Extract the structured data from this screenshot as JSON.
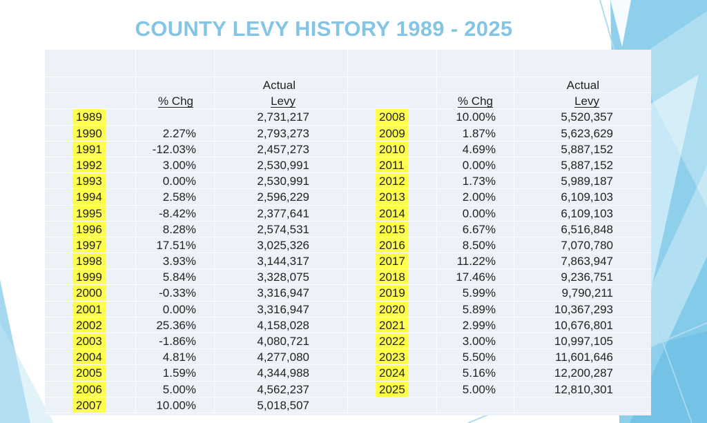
{
  "slide": {
    "title": "COUNTY LEVY HISTORY 1989 - 2025"
  },
  "table": {
    "headers": {
      "actual": "Actual",
      "pct_chg": "% Chg",
      "levy": "Levy"
    },
    "left_rows": [
      {
        "year": "1989",
        "pct": "",
        "levy": "2,731,217"
      },
      {
        "year": "1990",
        "pct": "2.27%",
        "levy": "2,793,273"
      },
      {
        "year": "1991",
        "pct": "-12.03%",
        "levy": "2,457,273"
      },
      {
        "year": "1992",
        "pct": "3.00%",
        "levy": "2,530,991"
      },
      {
        "year": "1993",
        "pct": "0.00%",
        "levy": "2,530,991"
      },
      {
        "year": "1994",
        "pct": "2.58%",
        "levy": "2,596,229"
      },
      {
        "year": "1995",
        "pct": "-8.42%",
        "levy": "2,377,641"
      },
      {
        "year": "1996",
        "pct": "8.28%",
        "levy": "2,574,531"
      },
      {
        "year": "1997",
        "pct": "17.51%",
        "levy": "3,025,326"
      },
      {
        "year": "1998",
        "pct": "3.93%",
        "levy": "3,144,317"
      },
      {
        "year": "1999",
        "pct": "5.84%",
        "levy": "3,328,075"
      },
      {
        "year": "2000",
        "pct": "-0.33%",
        "levy": "3,316,947"
      },
      {
        "year": "2001",
        "pct": "0.00%",
        "levy": "3,316,947"
      },
      {
        "year": "2002",
        "pct": "25.36%",
        "levy": "4,158,028"
      },
      {
        "year": "2003",
        "pct": "-1.86%",
        "levy": "4,080,721"
      },
      {
        "year": "2004",
        "pct": "4.81%",
        "levy": "4,277,080"
      },
      {
        "year": "2005",
        "pct": "1.59%",
        "levy": "4,344,988"
      },
      {
        "year": "2006",
        "pct": "5.00%",
        "levy": "4,562,237"
      },
      {
        "year": "2007",
        "pct": "10.00%",
        "levy": "5,018,507"
      }
    ],
    "right_rows": [
      {
        "year": "2008",
        "pct": "10.00%",
        "levy": "5,520,357"
      },
      {
        "year": "2009",
        "pct": "1.87%",
        "levy": "5,623,629"
      },
      {
        "year": "2010",
        "pct": "4.69%",
        "levy": "5,887,152"
      },
      {
        "year": "2011",
        "pct": "0.00%",
        "levy": "5,887,152"
      },
      {
        "year": "2012",
        "pct": "1.73%",
        "levy": "5,989,187"
      },
      {
        "year": "2013",
        "pct": "2.00%",
        "levy": "6,109,103"
      },
      {
        "year": "2014",
        "pct": "0.00%",
        "levy": "6,109,103"
      },
      {
        "year": "2015",
        "pct": "6.67%",
        "levy": "6,516,848"
      },
      {
        "year": "2016",
        "pct": "8.50%",
        "levy": "7,070,780"
      },
      {
        "year": "2017",
        "pct": "11.22%",
        "levy": "7,863,947"
      },
      {
        "year": "2018",
        "pct": "17.46%",
        "levy": "9,236,751"
      },
      {
        "year": "2019",
        "pct": "5.99%",
        "levy": "9,790,211"
      },
      {
        "year": "2020",
        "pct": "5.89%",
        "levy": "10,367,293"
      },
      {
        "year": "2021",
        "pct": "2.99%",
        "levy": "10,676,801"
      },
      {
        "year": "2022",
        "pct": "3.00%",
        "levy": "10,997,105"
      },
      {
        "year": "2023",
        "pct": "5.50%",
        "levy": "11,601,646"
      },
      {
        "year": "2024",
        "pct": "5.16%",
        "levy": "12,200,287"
      },
      {
        "year": "2025",
        "pct": "5.00%",
        "levy": "12,810,301"
      }
    ]
  },
  "colors": {
    "title": "#84c4e5",
    "card-bg": "#ecf2f8",
    "grid-line": "rgba(255,255,255,0.85)",
    "text": "#222222",
    "highlight": "#ffff4d",
    "deco-main": "#8ed0ec",
    "deco-mid": "#5fb8e2",
    "deco-left": "#a5d8f0",
    "deco-pale": "#c3e5f4",
    "deco-line": "#aedcf2"
  }
}
